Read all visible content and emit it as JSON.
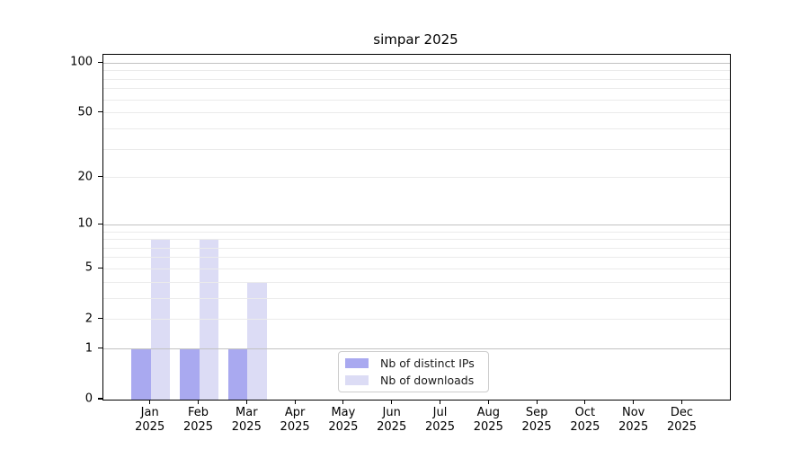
{
  "chart_data": {
    "type": "bar",
    "title": "simpar 2025",
    "categories": [
      "Jan 2025",
      "Feb 2025",
      "Mar 2025",
      "Apr 2025",
      "May 2025",
      "Jun 2025",
      "Jul 2025",
      "Aug 2025",
      "Sep 2025",
      "Oct 2025",
      "Nov 2025",
      "Dec 2025"
    ],
    "x_tick_labels": [
      [
        "Jan",
        "2025"
      ],
      [
        "Feb",
        "2025"
      ],
      [
        "Mar",
        "2025"
      ],
      [
        "Apr",
        "2025"
      ],
      [
        "May",
        "2025"
      ],
      [
        "Jun",
        "2025"
      ],
      [
        "Jul",
        "2025"
      ],
      [
        "Aug",
        "2025"
      ],
      [
        "Sep",
        "2025"
      ],
      [
        "Oct",
        "2025"
      ],
      [
        "Nov",
        "2025"
      ],
      [
        "Dec",
        "2025"
      ]
    ],
    "series": [
      {
        "name": "Nb of distinct IPs",
        "color": "#a9a9f0",
        "values": [
          1,
          1,
          1,
          0,
          0,
          0,
          0,
          0,
          0,
          0,
          0,
          0
        ]
      },
      {
        "name": "Nb of downloads",
        "color": "#dcdcf5",
        "values": [
          8,
          8,
          4,
          0,
          0,
          0,
          0,
          0,
          0,
          0,
          0,
          0
        ]
      }
    ],
    "y_axis": {
      "scale": "log10(1+value)",
      "tick_values": [
        0,
        1,
        2,
        5,
        10,
        20,
        50,
        100
      ],
      "gridline_values": [
        1,
        2,
        3,
        4,
        5,
        6,
        7,
        8,
        9,
        10,
        20,
        30,
        40,
        50,
        60,
        70,
        80,
        90,
        100
      ],
      "emphasized_gridline_values": [
        1,
        10,
        100
      ],
      "top_value_approx": 112
    },
    "legend": {
      "position": "bottom-center-inside",
      "entries": [
        "Nb of distinct IPs",
        "Nb of downloads"
      ]
    },
    "colors": {
      "distinct_ips_bar": "#a9a9f0",
      "downloads_bar": "#dcdcf5",
      "emphasized_grid": "#c2c2c2",
      "minor_grid": "#ebebeb",
      "axis_frame": "#000000",
      "legend_border": "#cccccc",
      "text": "#000000",
      "background": "#ffffff"
    }
  }
}
